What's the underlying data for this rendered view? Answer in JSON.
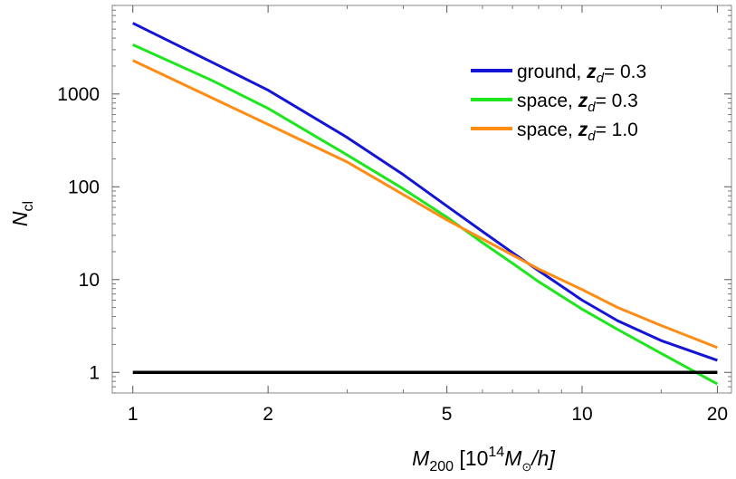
{
  "chart_data": {
    "type": "line",
    "title": "",
    "x_scale": "log",
    "y_scale": "log",
    "xlim": [
      0.9,
      21.5
    ],
    "ylim": [
      0.6,
      9000
    ],
    "x_ticks": [
      1,
      2,
      5,
      10,
      20
    ],
    "x_tick_labels": [
      "1",
      "2",
      "5",
      "10",
      "20"
    ],
    "y_ticks": [
      1,
      10,
      100,
      1000
    ],
    "y_tick_labels": [
      "1",
      "10",
      "100",
      "1000"
    ],
    "xlabel": {
      "main": "M",
      "sub": "200",
      "open": " [10",
      "sup": "14",
      "mass": "M",
      "sun": "⊙",
      "tail": "/h]"
    },
    "ylabel": {
      "main": "N",
      "sub": "cl"
    },
    "legend": {
      "position": "top-right"
    },
    "grid": false,
    "series": [
      {
        "name": "ground, z_d = 0.3",
        "label": {
          "pre": "ground, ",
          "z": "z",
          "d": "d",
          "post": "= 0.3"
        },
        "color": "#1414d6",
        "x": [
          1,
          1.5,
          2,
          3,
          4,
          5,
          6,
          7,
          8,
          10,
          12,
          15,
          20
        ],
        "y": [
          5800,
          2200,
          1100,
          340,
          135,
          62,
          33,
          19.5,
          12.5,
          6,
          3.6,
          2.2,
          1.35
        ]
      },
      {
        "name": "space, z_d = 0.3",
        "label": {
          "pre": "space, ",
          "z": "z",
          "d": "d",
          "post": "= 0.3"
        },
        "color": "#1ee61e",
        "x": [
          1,
          1.5,
          2,
          3,
          4,
          5,
          6,
          7,
          8,
          10,
          12,
          15,
          20
        ],
        "y": [
          3400,
          1400,
          700,
          220,
          95,
          47,
          25,
          15,
          9.5,
          4.8,
          2.9,
          1.6,
          0.75
        ]
      },
      {
        "name": "space, z_d = 1.0",
        "label": {
          "pre": "space, ",
          "z": "z",
          "d": "d",
          "post": "= 1.0"
        },
        "color": "#ff8c14",
        "x": [
          1,
          2,
          3,
          5,
          8,
          10,
          12,
          15,
          20
        ],
        "y": [
          2300,
          470,
          185,
          44,
          13,
          7.8,
          5,
          3.2,
          1.85
        ]
      },
      {
        "name": "",
        "color": "#000000",
        "x": [
          1,
          20
        ],
        "y": [
          1,
          1
        ]
      }
    ]
  }
}
